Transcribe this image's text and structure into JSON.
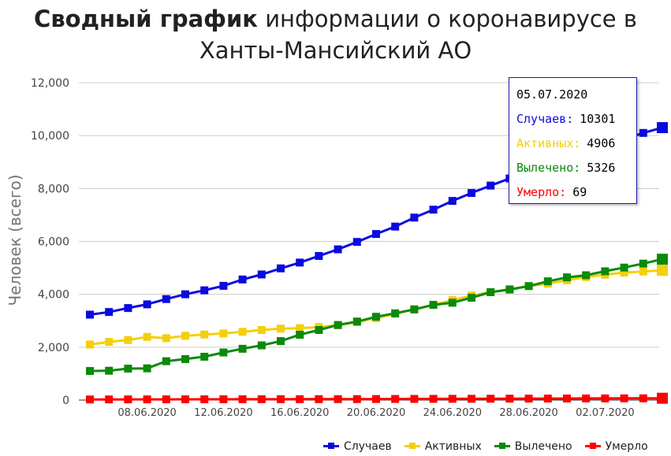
{
  "title": {
    "bold": "Сводный график",
    "line1": "информации о коронавирусе в",
    "line2": "Ханты-Мансийский АО"
  },
  "chart_data": {
    "type": "line",
    "ylabel": "Человек (всего)",
    "ylim": [
      0,
      12000
    ],
    "yticks": [
      "0",
      "2,000",
      "4,000",
      "6,000",
      "8,000",
      "10,000",
      "12,000"
    ],
    "xticks": [
      "08.06.2020",
      "12.06.2020",
      "16.06.2020",
      "20.06.2020",
      "24.06.2020",
      "28.06.2020",
      "02.07.2020"
    ],
    "x": [
      "05.06.2020",
      "06.06.2020",
      "07.06.2020",
      "08.06.2020",
      "09.06.2020",
      "10.06.2020",
      "11.06.2020",
      "12.06.2020",
      "13.06.2020",
      "14.06.2020",
      "15.06.2020",
      "16.06.2020",
      "17.06.2020",
      "18.06.2020",
      "19.06.2020",
      "20.06.2020",
      "21.06.2020",
      "22.06.2020",
      "23.06.2020",
      "24.06.2020",
      "25.06.2020",
      "26.06.2020",
      "27.06.2020",
      "28.06.2020",
      "29.06.2020",
      "30.06.2020",
      "01.07.2020",
      "02.07.2020",
      "03.07.2020",
      "04.07.2020",
      "05.07.2020"
    ],
    "grid": true,
    "legend_position": "bottom-right",
    "series": [
      {
        "name": "Случаев",
        "color": "#0a0ae0",
        "values": [
          3230,
          3330,
          3480,
          3620,
          3820,
          4000,
          4150,
          4320,
          4560,
          4750,
          4980,
          5200,
          5450,
          5700,
          5980,
          6280,
          6560,
          6900,
          7200,
          7530,
          7830,
          8110,
          8380,
          8620,
          8860,
          9100,
          9400,
          9650,
          9870,
          10100,
          10301
        ]
      },
      {
        "name": "Активных",
        "color": "#f4cf0a",
        "values": [
          2100,
          2200,
          2270,
          2390,
          2340,
          2430,
          2480,
          2520,
          2580,
          2650,
          2700,
          2720,
          2760,
          2830,
          2950,
          3100,
          3260,
          3420,
          3600,
          3780,
          3950,
          4080,
          4200,
          4310,
          4400,
          4530,
          4650,
          4740,
          4820,
          4860,
          4906
        ]
      },
      {
        "name": "Вылечено",
        "color": "#0a8a0a",
        "values": [
          1100,
          1110,
          1190,
          1200,
          1470,
          1550,
          1640,
          1800,
          1940,
          2070,
          2230,
          2470,
          2650,
          2840,
          2970,
          3150,
          3280,
          3430,
          3600,
          3680,
          3870,
          4080,
          4180,
          4310,
          4490,
          4640,
          4720,
          4870,
          5010,
          5160,
          5326
        ]
      },
      {
        "name": "Умерло",
        "color": "#ff0000",
        "values": [
          24,
          25,
          26,
          27,
          28,
          29,
          30,
          31,
          32,
          33,
          34,
          35,
          36,
          37,
          38,
          40,
          42,
          44,
          46,
          48,
          50,
          52,
          54,
          56,
          58,
          60,
          62,
          64,
          66,
          67,
          69
        ]
      }
    ],
    "tooltip": {
      "date": "05.07.2020",
      "rows": [
        {
          "label": "Случаев:",
          "value": "10301",
          "color": "#0a0ae0"
        },
        {
          "label": "Активных:",
          "value": "4906",
          "color": "#f4cf0a"
        },
        {
          "label": "Вылечено:",
          "value": "5326",
          "color": "#0a8a0a"
        },
        {
          "label": "Умерло:",
          "value": "69",
          "color": "#ff0000"
        }
      ]
    }
  }
}
